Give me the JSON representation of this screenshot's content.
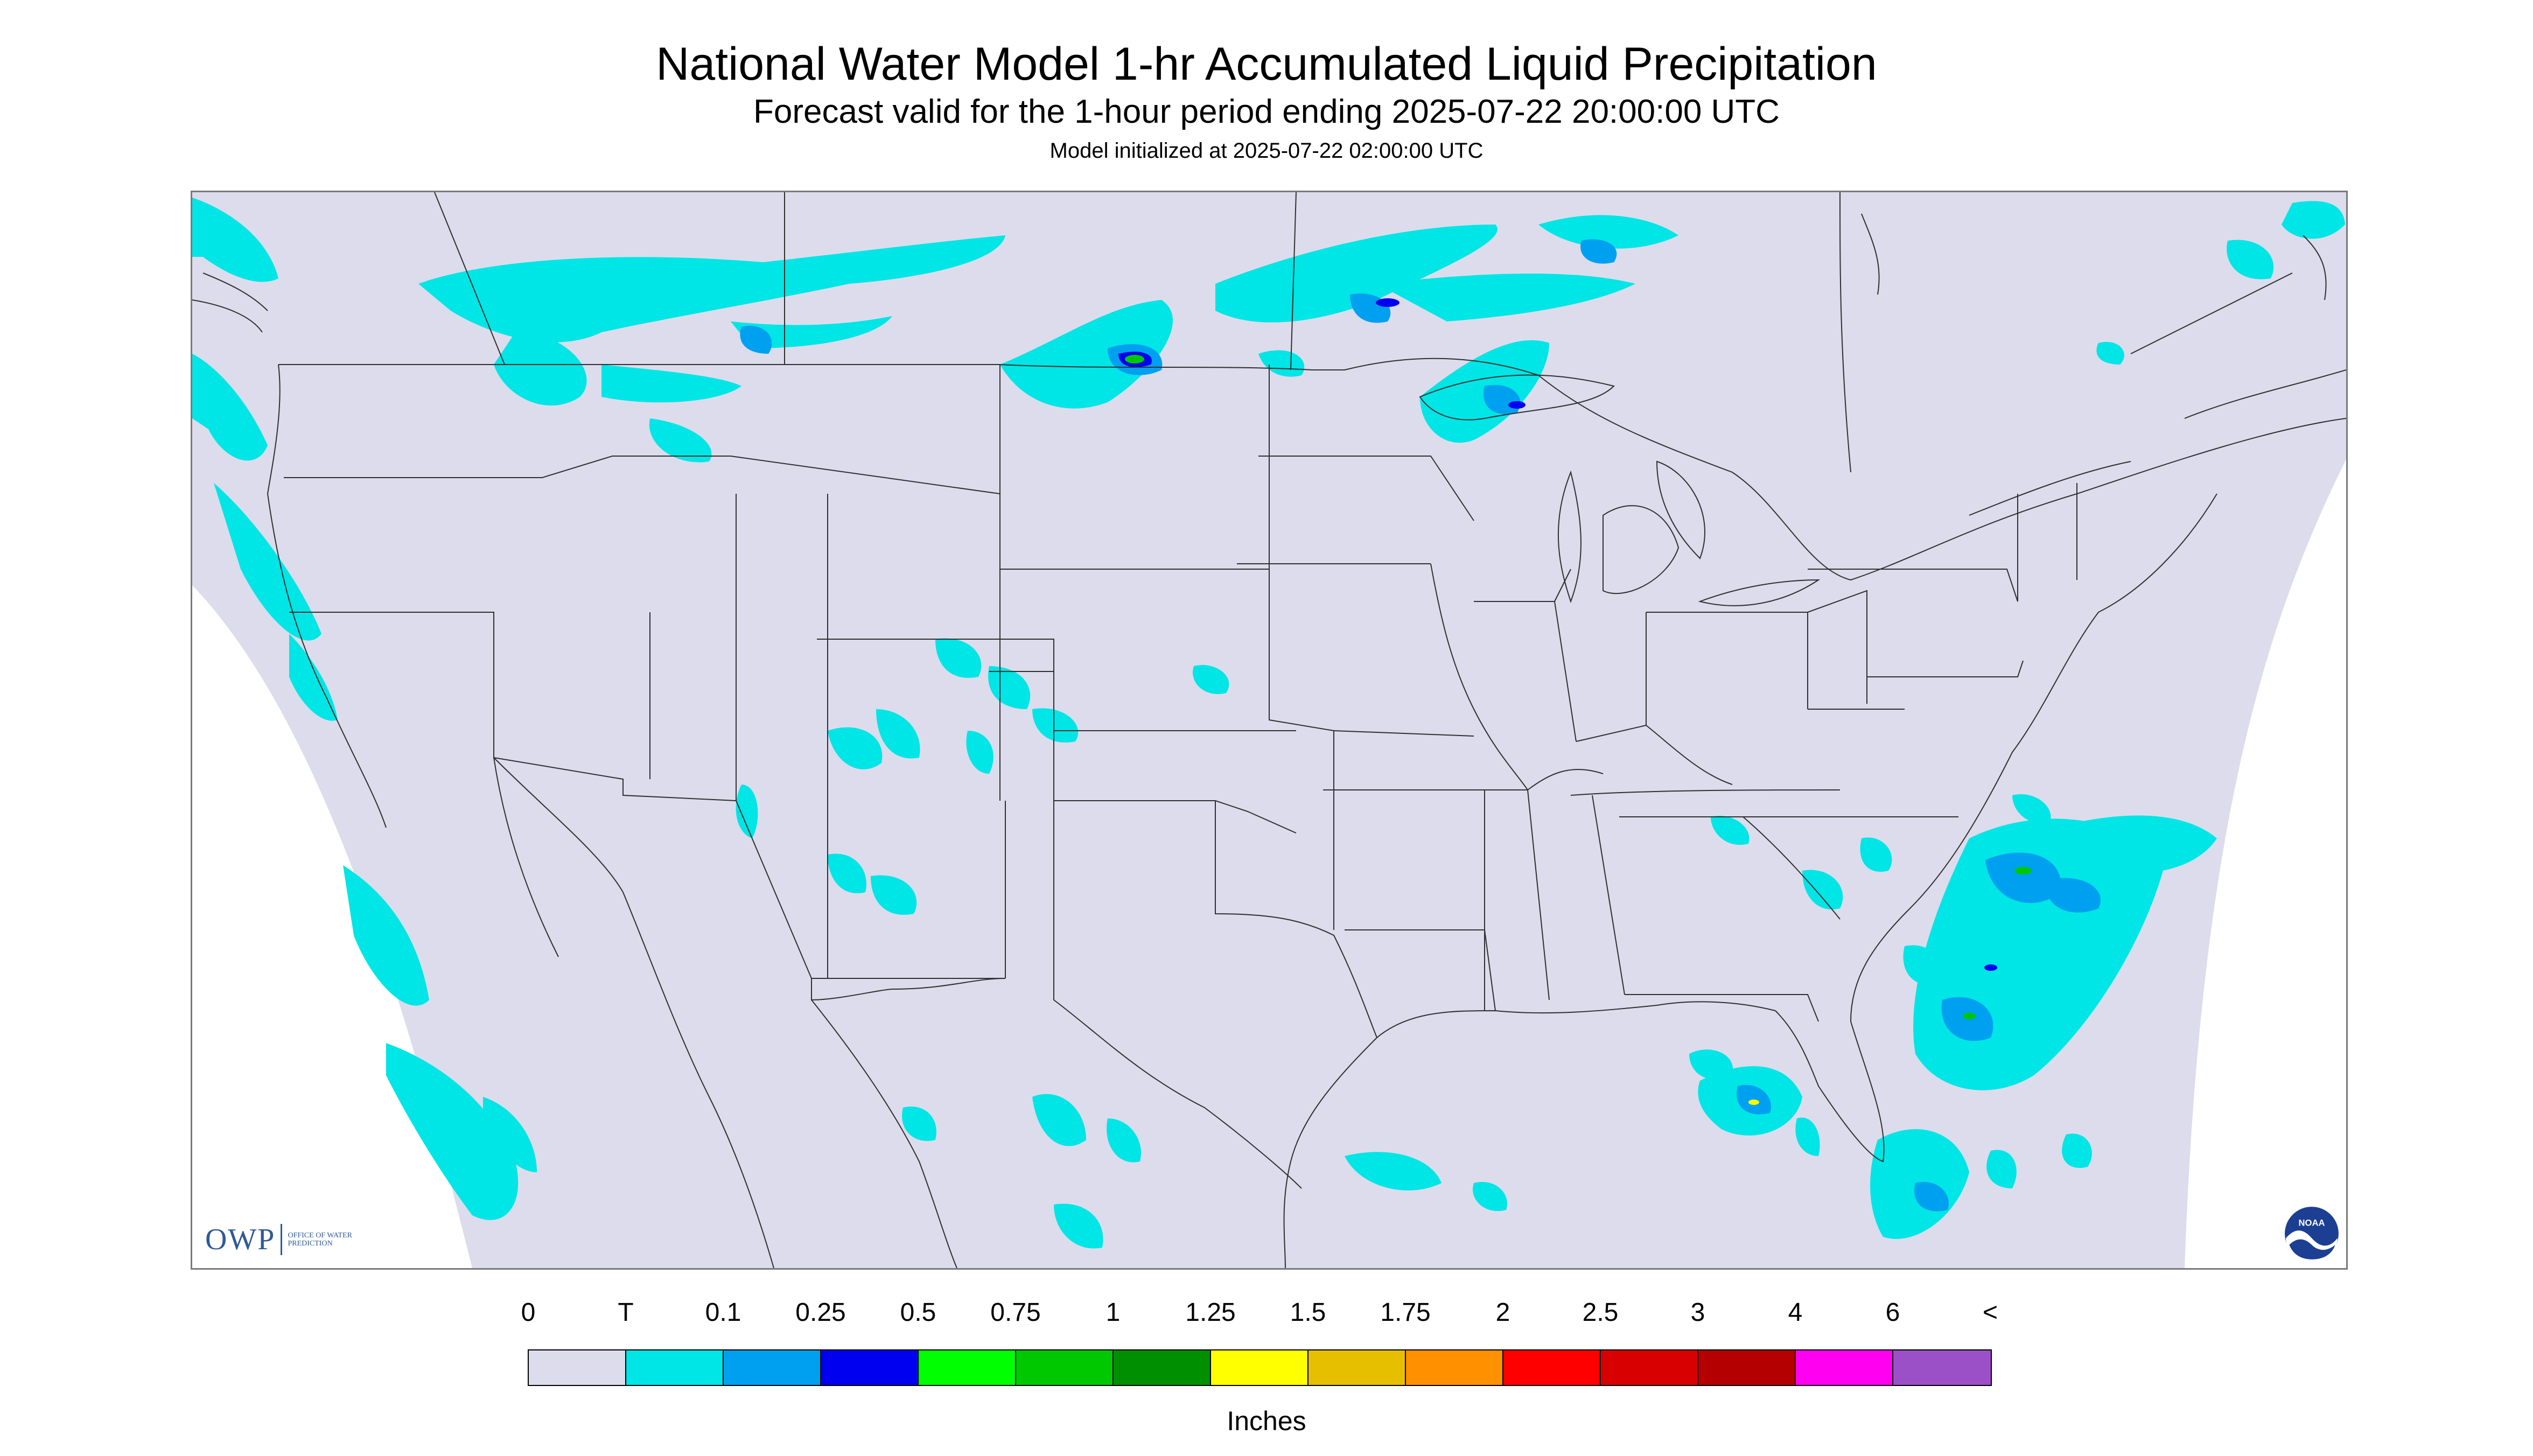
{
  "header": {
    "title": "National Water Model 1-hr Accumulated Liquid Precipitation",
    "subtitle": "Forecast valid for the 1-hour period ending 2025-07-22 20:00:00 UTC",
    "init_line": "Model initialized at 2025-07-22 02:00:00 UTC"
  },
  "map": {
    "background_color": "#dcdcec",
    "outside_color": "#ffffff",
    "border_color": "#303030",
    "logos": {
      "owp_text": "OWP",
      "owp_subtext": "OFFICE OF WATER PREDICTION",
      "noaa_text": "NOAA"
    }
  },
  "legend": {
    "labels": [
      "0",
      "T",
      "0.1",
      "0.25",
      "0.5",
      "0.75",
      "1",
      "1.25",
      "1.5",
      "1.75",
      "2",
      "2.5",
      "3",
      "4",
      "6",
      "<"
    ],
    "colors": [
      "#dcdcec",
      "#00e5e5",
      "#00a0f0",
      "#0000f0",
      "#00ff00",
      "#00c800",
      "#008f00",
      "#ffff00",
      "#e6c000",
      "#ff9000",
      "#ff0000",
      "#d80000",
      "#b40000",
      "#ff00f0",
      "#9b50c8"
    ],
    "units": "Inches"
  }
}
